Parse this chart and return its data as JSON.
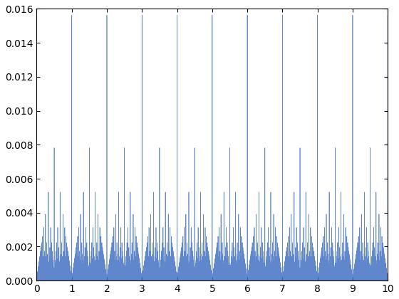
{
  "xlim": [
    0,
    10
  ],
  "ylim": [
    0,
    0.016
  ],
  "yticks": [
    0,
    0.002,
    0.004,
    0.006,
    0.008,
    0.01,
    0.012,
    0.014,
    0.016
  ],
  "xticks": [
    0,
    1,
    2,
    3,
    4,
    5,
    6,
    7,
    8,
    9,
    10
  ],
  "line_color": "#4472C4",
  "bg_color": "#ffffff",
  "k": 6,
  "x_max": 10.0,
  "figsize": [
    5.6,
    4.2
  ],
  "dpi": 100
}
